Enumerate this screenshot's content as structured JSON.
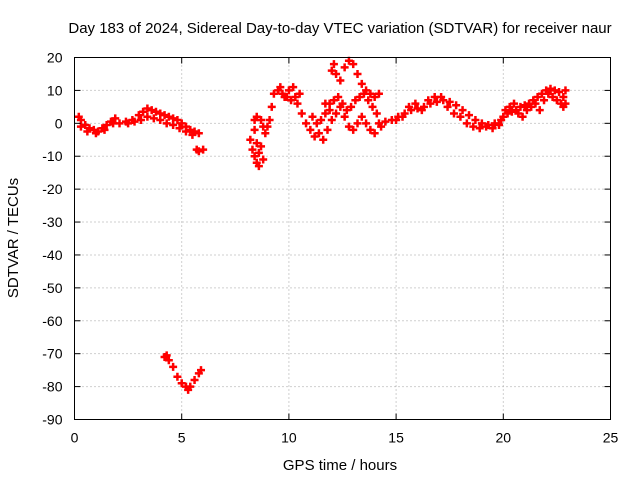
{
  "chart_data": {
    "type": "scatter",
    "title": "Day 183 of 2024, Sidereal Day-to-day VTEC variation (SDTVAR) for receiver naur",
    "xlabel": "GPS time / hours",
    "ylabel": "SDTVAR / TECUs",
    "xlim": [
      0,
      25
    ],
    "ylim": [
      -90,
      20
    ],
    "xticks": [
      0,
      5,
      10,
      15,
      20,
      25
    ],
    "yticks": [
      20,
      10,
      0,
      -10,
      -20,
      -30,
      -40,
      -50,
      -60,
      -70,
      -80,
      -90
    ],
    "grid": true,
    "marker": "+",
    "color": "#ff0000",
    "series": [
      {
        "name": "SDTVAR",
        "points": [
          [
            0.2,
            2
          ],
          [
            0.3,
            1
          ],
          [
            0.5,
            -0.5
          ],
          [
            0.7,
            -1.5
          ],
          [
            0.9,
            -2
          ],
          [
            1.1,
            -2.5
          ],
          [
            1.3,
            -1.5
          ],
          [
            1.5,
            -0.5
          ],
          [
            1.7,
            0.5
          ],
          [
            1.9,
            1.5
          ],
          [
            0.3,
            -1
          ],
          [
            0.6,
            -2.5
          ],
          [
            1.0,
            -3
          ],
          [
            1.4,
            -2
          ],
          [
            1.8,
            0
          ],
          [
            2.1,
            0
          ],
          [
            2.4,
            0.5
          ],
          [
            2.7,
            1
          ],
          [
            3.0,
            2.5
          ],
          [
            3.2,
            3.5
          ],
          [
            3.4,
            4.5
          ],
          [
            3.6,
            4
          ],
          [
            3.8,
            3.5
          ],
          [
            4.0,
            3
          ],
          [
            4.2,
            2.5
          ],
          [
            4.4,
            2
          ],
          [
            4.6,
            1.5
          ],
          [
            4.8,
            1
          ],
          [
            5.0,
            0
          ],
          [
            5.2,
            -1
          ],
          [
            5.4,
            -2
          ],
          [
            5.6,
            -2.5
          ],
          [
            5.8,
            -3
          ],
          [
            2.5,
            0
          ],
          [
            2.8,
            0.5
          ],
          [
            3.1,
            1
          ],
          [
            3.4,
            2
          ],
          [
            3.7,
            1.5
          ],
          [
            4.0,
            1
          ],
          [
            4.3,
            0
          ],
          [
            4.6,
            -0.5
          ],
          [
            4.9,
            -1.5
          ],
          [
            5.2,
            -2.5
          ],
          [
            5.5,
            -3.5
          ],
          [
            5.7,
            -8
          ],
          [
            5.8,
            -8.5
          ],
          [
            6.0,
            -8
          ],
          [
            8.2,
            -5
          ],
          [
            8.3,
            -8
          ],
          [
            8.4,
            -10
          ],
          [
            8.5,
            -12
          ],
          [
            8.6,
            -13
          ],
          [
            8.6,
            -9
          ],
          [
            8.5,
            -6
          ],
          [
            8.4,
            -2
          ],
          [
            8.4,
            1
          ],
          [
            8.5,
            2
          ],
          [
            8.7,
            1
          ],
          [
            8.8,
            -1
          ],
          [
            8.9,
            -3
          ],
          [
            9.0,
            -1
          ],
          [
            9.1,
            1
          ],
          [
            8.8,
            -11
          ],
          [
            8.7,
            -7
          ],
          [
            9.2,
            5
          ],
          [
            9.3,
            9
          ],
          [
            9.5,
            10
          ],
          [
            9.7,
            9
          ],
          [
            9.9,
            8
          ],
          [
            10.1,
            7
          ],
          [
            10.3,
            8
          ],
          [
            10.5,
            9
          ],
          [
            10.2,
            11
          ],
          [
            10.0,
            10
          ],
          [
            9.8,
            8
          ],
          [
            9.6,
            11
          ],
          [
            10.4,
            6
          ],
          [
            10.6,
            3
          ],
          [
            10.8,
            0
          ],
          [
            11.0,
            -2
          ],
          [
            11.2,
            -4
          ],
          [
            11.4,
            -3
          ],
          [
            11.6,
            -5
          ],
          [
            11.8,
            -2
          ],
          [
            12.0,
            1
          ],
          [
            12.2,
            3
          ],
          [
            12.4,
            5
          ],
          [
            12.6,
            2
          ],
          [
            12.8,
            -1
          ],
          [
            13.0,
            -2
          ],
          [
            13.2,
            0
          ],
          [
            13.4,
            2
          ],
          [
            13.6,
            0
          ],
          [
            13.8,
            -2
          ],
          [
            14.0,
            -3
          ],
          [
            11.1,
            2
          ],
          [
            11.3,
            0
          ],
          [
            11.5,
            1
          ],
          [
            11.7,
            3
          ],
          [
            11.9,
            6
          ],
          [
            12.1,
            7
          ],
          [
            12.3,
            8
          ],
          [
            12.5,
            6
          ],
          [
            12.7,
            4
          ],
          [
            12.9,
            5
          ],
          [
            13.1,
            7
          ],
          [
            13.3,
            8
          ],
          [
            13.5,
            9
          ],
          [
            13.7,
            7
          ],
          [
            13.9,
            5
          ],
          [
            14.1,
            3
          ],
          [
            14.3,
            -1
          ],
          [
            11.7,
            6
          ],
          [
            11.9,
            4
          ],
          [
            12.0,
            16
          ],
          [
            12.1,
            18
          ],
          [
            12.2,
            15
          ],
          [
            12.4,
            13
          ],
          [
            12.6,
            17
          ],
          [
            12.8,
            19
          ],
          [
            13.0,
            18
          ],
          [
            13.2,
            15
          ],
          [
            13.4,
            12
          ],
          [
            13.6,
            10
          ],
          [
            13.8,
            9
          ],
          [
            14.0,
            8
          ],
          [
            14.2,
            9
          ],
          [
            14.2,
            0
          ],
          [
            14.5,
            0.5
          ],
          [
            14.8,
            1
          ],
          [
            15.1,
            2
          ],
          [
            15.4,
            3
          ],
          [
            15.7,
            4
          ],
          [
            16.0,
            4.5
          ],
          [
            16.3,
            5
          ],
          [
            16.6,
            6
          ],
          [
            16.9,
            6.5
          ],
          [
            17.2,
            7
          ],
          [
            17.5,
            6.5
          ],
          [
            17.8,
            5.5
          ],
          [
            18.1,
            4
          ],
          [
            18.4,
            2.5
          ],
          [
            18.7,
            1
          ],
          [
            19.0,
            0
          ],
          [
            19.3,
            -0.5
          ],
          [
            19.6,
            0
          ],
          [
            19.9,
            1
          ],
          [
            15.0,
            1
          ],
          [
            15.3,
            2
          ],
          [
            15.6,
            5
          ],
          [
            15.9,
            6
          ],
          [
            16.2,
            4
          ],
          [
            16.5,
            7
          ],
          [
            16.8,
            8
          ],
          [
            17.1,
            8
          ],
          [
            17.4,
            5
          ],
          [
            17.7,
            3
          ],
          [
            18.0,
            2
          ],
          [
            18.3,
            0
          ],
          [
            18.6,
            -1
          ],
          [
            18.9,
            -1.5
          ],
          [
            19.2,
            -1
          ],
          [
            19.5,
            -1.5
          ],
          [
            19.8,
            -0.5
          ],
          [
            20.0,
            2
          ],
          [
            20.2,
            3
          ],
          [
            20.4,
            3.5
          ],
          [
            20.6,
            4
          ],
          [
            20.8,
            5
          ],
          [
            21.0,
            5.5
          ],
          [
            21.2,
            6
          ],
          [
            21.4,
            7
          ],
          [
            21.6,
            8
          ],
          [
            21.8,
            9
          ],
          [
            22.0,
            10
          ],
          [
            22.2,
            10.5
          ],
          [
            22.4,
            10
          ],
          [
            22.6,
            9.5
          ],
          [
            22.8,
            8
          ],
          [
            22.9,
            6
          ],
          [
            22.9,
            10
          ],
          [
            22.8,
            5
          ],
          [
            20.1,
            4
          ],
          [
            20.3,
            5
          ],
          [
            20.5,
            6
          ],
          [
            20.7,
            3
          ],
          [
            20.9,
            2
          ],
          [
            21.1,
            4
          ],
          [
            21.3,
            5
          ],
          [
            21.5,
            6
          ],
          [
            21.7,
            4
          ],
          [
            21.9,
            7
          ],
          [
            22.1,
            9
          ],
          [
            22.3,
            8
          ],
          [
            22.5,
            7
          ],
          [
            22.7,
            6
          ],
          [
            4.2,
            -71
          ],
          [
            4.4,
            -72
          ],
          [
            4.6,
            -74
          ],
          [
            4.8,
            -77
          ],
          [
            5.0,
            -79
          ],
          [
            5.2,
            -80
          ],
          [
            5.4,
            -80
          ],
          [
            5.6,
            -78
          ],
          [
            5.8,
            -76
          ],
          [
            5.9,
            -75
          ],
          [
            4.3,
            -70.5
          ],
          [
            5.3,
            -81
          ]
        ]
      }
    ]
  }
}
